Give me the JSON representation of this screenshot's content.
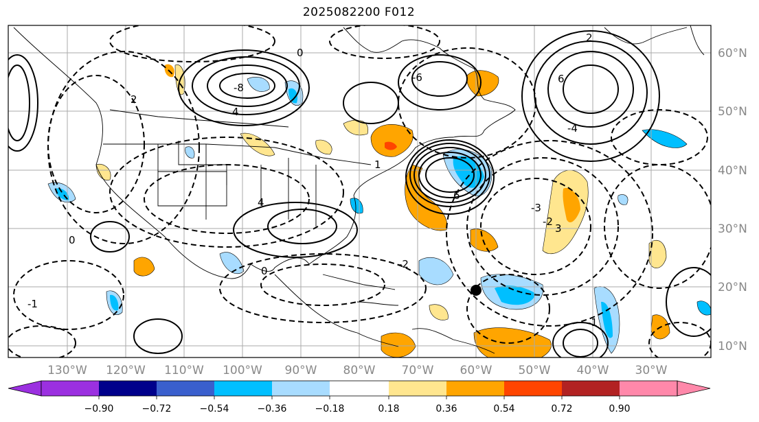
{
  "title": "2025082200 F012",
  "lon_labels": [
    "130°W",
    "120°W",
    "110°W",
    "100°W",
    "90°W",
    "80°W",
    "70°W",
    "60°W",
    "50°W",
    "40°W",
    "30°W"
  ],
  "lat_labels": [
    "60°N",
    "50°N",
    "40°N",
    "30°N",
    "20°N",
    "10°N"
  ],
  "colorbar": {
    "ticks": [
      "−0.90",
      "−0.72",
      "−0.54",
      "−0.36",
      "−0.18",
      "0.18",
      "0.36",
      "0.54",
      "0.72",
      "0.90"
    ],
    "colors": [
      "#9b30e0",
      "#00008b",
      "#3a5fcd",
      "#00bfff",
      "#a8dcff",
      "#ffffff",
      "#ffe68f",
      "#ffa500",
      "#ff4500",
      "#b22222",
      "#ff88aa"
    ]
  },
  "contour_labels": [
    "0",
    "2",
    "4",
    "6",
    "-1",
    "-2",
    "-3",
    "-6",
    "-8",
    "0",
    "2",
    "-4",
    "1",
    "3",
    "-2",
    "-1",
    "0",
    "6",
    "4"
  ],
  "marker": "storm-center-dot"
}
